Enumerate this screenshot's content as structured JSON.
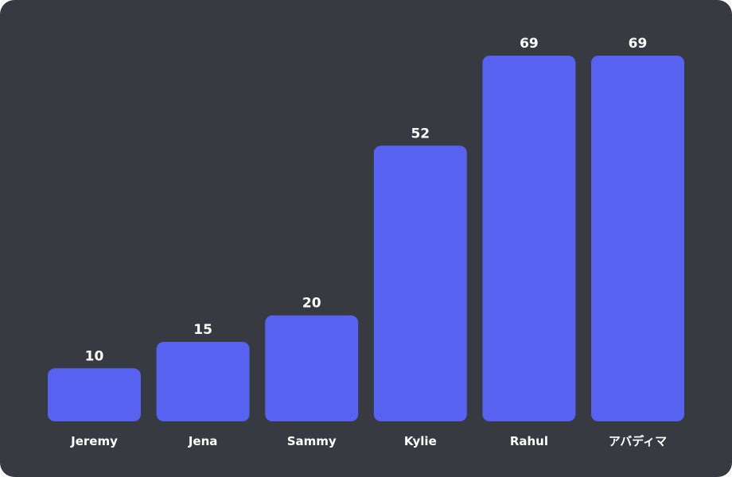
{
  "colors": {
    "background": "#383a42",
    "bar": "#5763f0",
    "text": "#ffffff"
  },
  "chart_data": {
    "type": "bar",
    "categories": [
      "Jeremy",
      "Jena",
      "Sammy",
      "Kylie",
      "Rahul",
      "アバディマ"
    ],
    "values": [
      10,
      15,
      20,
      52,
      69,
      69
    ],
    "title": "",
    "xlabel": "",
    "ylabel": "",
    "ylim": [
      0,
      69
    ],
    "grid": false,
    "legend": "none",
    "data_labels": true
  }
}
